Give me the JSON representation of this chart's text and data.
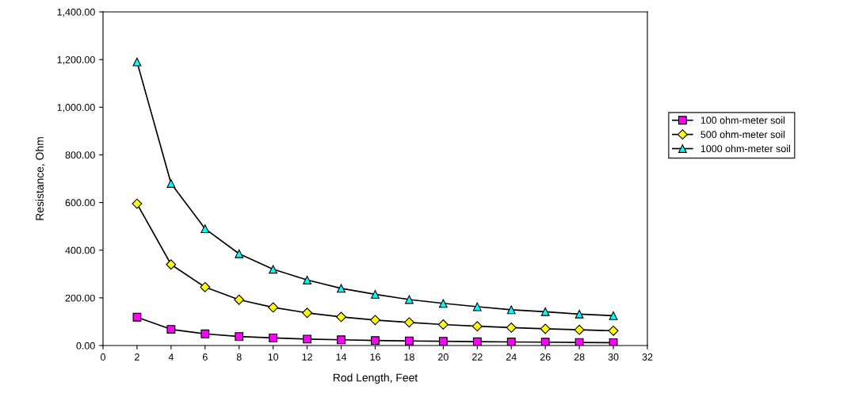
{
  "chart_data": {
    "type": "line",
    "xlabel": "Rod Length, Feet",
    "ylabel": "Resistance, Ohm",
    "x": [
      2,
      4,
      6,
      8,
      10,
      12,
      14,
      16,
      18,
      20,
      22,
      24,
      26,
      28,
      30
    ],
    "series": [
      {
        "name": "100 ohm-meter soil",
        "color": "#ff00ff",
        "marker": "square",
        "values": [
          119,
          68,
          49,
          38,
          32,
          27,
          24,
          21,
          19,
          18,
          16,
          15,
          14,
          13,
          12
        ]
      },
      {
        "name": "500 ohm-meter soil",
        "color": "#ffff00",
        "marker": "diamond",
        "values": [
          595,
          340,
          245,
          192,
          160,
          137,
          120,
          107,
          97,
          88,
          81,
          75,
          70,
          66,
          62
        ]
      },
      {
        "name": "1000 ohm-meter soil",
        "color": "#00ffff",
        "marker": "triangle",
        "values": [
          1190,
          680,
          490,
          385,
          320,
          275,
          240,
          215,
          193,
          177,
          163,
          150,
          142,
          132,
          125
        ]
      }
    ],
    "xlim": [
      0,
      32
    ],
    "xticks": [
      0,
      2,
      4,
      6,
      8,
      10,
      12,
      14,
      16,
      18,
      20,
      22,
      24,
      26,
      28,
      30,
      32
    ],
    "ylim": [
      0,
      1400
    ],
    "yticks": [
      {
        "value": 0,
        "label": "0.00"
      },
      {
        "value": 200,
        "label": "200.00"
      },
      {
        "value": 400,
        "label": "400.00"
      },
      {
        "value": 600,
        "label": "600.00"
      },
      {
        "value": 800,
        "label": "800.00"
      },
      {
        "value": 1000,
        "label": "1,000.00"
      },
      {
        "value": 1200,
        "label": "1,200.00"
      },
      {
        "value": 1400,
        "label": "1,400.00"
      }
    ],
    "grid": false,
    "legend": "right",
    "line_style": "solid"
  }
}
